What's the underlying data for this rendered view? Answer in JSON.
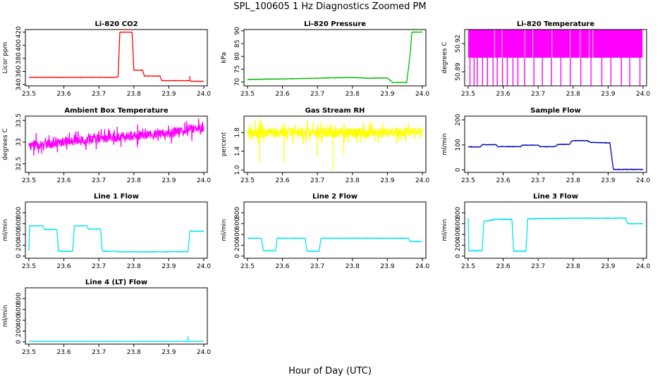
{
  "figure": {
    "title": "SPL_100605  1 Hz Diagnostics Zoomed PM",
    "xlabel": "Hour of Day (UTC)"
  },
  "chart_data": [
    {
      "id": "co2",
      "type": "line",
      "title": "Li-820 CO2",
      "ylabel": "Licor ppm",
      "color": "#ff0000",
      "noise": 0.25,
      "xlim": [
        23.49,
        24.01
      ],
      "ylim": [
        338,
        424
      ],
      "xticks": [
        23.5,
        23.6,
        23.7,
        23.8,
        23.9,
        24.0
      ],
      "xtick_labels": [
        "23.5",
        "23.6",
        "23.7",
        "23.8",
        "23.9",
        "24.0"
      ],
      "yticks": [
        340,
        360,
        380,
        400,
        420
      ],
      "ytick_labels": [
        "340",
        "360",
        "380",
        "400",
        "420"
      ],
      "series": [
        {
          "name": "CO2",
          "x": [
            23.5,
            23.65,
            23.75,
            23.755,
            23.76,
            23.795,
            23.8,
            23.825,
            23.83,
            23.845,
            23.85,
            23.875,
            23.88,
            23.955,
            23.96,
            23.965,
            24.0
          ],
          "y": [
            351,
            351,
            351,
            352,
            420,
            420,
            362,
            362,
            353,
            353,
            353,
            353,
            346,
            346,
            346,
            345,
            345
          ]
        }
      ],
      "spikes": [
        {
          "x": 23.96,
          "y": 353
        }
      ]
    },
    {
      "id": "pressure",
      "type": "line",
      "title": "Li-820 Pressure",
      "ylabel": "kPa",
      "color": "#00bb00",
      "noise": 0.1,
      "xlim": [
        23.49,
        24.01
      ],
      "ylim": [
        68.5,
        90.5
      ],
      "xticks": [
        23.5,
        23.6,
        23.7,
        23.8,
        23.9,
        24.0
      ],
      "xtick_labels": [
        "23.5",
        "23.6",
        "23.7",
        "23.8",
        "23.9",
        "24.0"
      ],
      "yticks": [
        70,
        75,
        80,
        85,
        90
      ],
      "ytick_labels": [
        "70",
        "75",
        "80",
        "85",
        "90"
      ],
      "series": [
        {
          "name": "Pressure",
          "x": [
            23.5,
            23.6,
            23.7,
            23.8,
            23.84,
            23.85,
            23.9,
            23.915,
            23.955,
            23.96,
            23.965,
            23.97,
            24.0
          ],
          "y": [
            71,
            71.2,
            71.5,
            71.8,
            71.5,
            71.5,
            71.6,
            69.8,
            69.8,
            75,
            81,
            89.5,
            89.5
          ]
        }
      ]
    },
    {
      "id": "licor_temp",
      "type": "band",
      "title": "Li-820 Temperature",
      "ylabel": "degrees C",
      "color": "#ff00ff",
      "xlim": [
        23.49,
        24.01
      ],
      "ylim": [
        50.875,
        50.935
      ],
      "xticks": [
        23.5,
        23.6,
        23.7,
        23.8,
        23.9,
        24.0
      ],
      "xtick_labels": [
        "23.5",
        "23.6",
        "23.7",
        "23.8",
        "23.9",
        "24.0"
      ],
      "yticks": [
        50.89,
        50.92
      ],
      "ytick_labels": [
        "50.89",
        "50.92"
      ],
      "band": {
        "low": 50.905,
        "high": 50.935
      },
      "dropouts": [
        23.505,
        23.517,
        23.526,
        23.541,
        23.555,
        23.571,
        23.583,
        23.598,
        23.612,
        23.628,
        23.642,
        23.661,
        23.688,
        23.712,
        23.738,
        23.765,
        23.792,
        23.822,
        23.851,
        23.882,
        23.908,
        23.938,
        23.962,
        23.991
      ]
    },
    {
      "id": "box_temp",
      "type": "line",
      "title": "Ambient Box Temperature",
      "ylabel": "degrees C",
      "color": "#ff00ff",
      "noise": 0.1,
      "spiky": true,
      "xlim": [
        23.49,
        24.01
      ],
      "ylim": [
        32.3,
        33.6
      ],
      "xticks": [
        23.5,
        23.6,
        23.7,
        23.8,
        23.9,
        24.0
      ],
      "xtick_labels": [
        "23.5",
        "23.6",
        "23.7",
        "23.8",
        "23.9",
        "24.0"
      ],
      "yticks": [
        32.5,
        33.0,
        33.5
      ],
      "ytick_labels": [
        "32.5",
        "33",
        "33.5"
      ],
      "series": [
        {
          "name": "Box Temp",
          "x": [
            23.5,
            23.55,
            23.6,
            23.7,
            23.8,
            23.9,
            23.95,
            24.0
          ],
          "y": [
            32.95,
            32.95,
            33.0,
            33.08,
            33.15,
            33.2,
            33.3,
            33.35
          ]
        }
      ]
    },
    {
      "id": "rh",
      "type": "line",
      "title": "Gas Stream RH",
      "ylabel": "percent",
      "color": "#ffff00",
      "noise": 0.1,
      "spiky": true,
      "xlim": [
        23.49,
        24.01
      ],
      "ylim": [
        0.95,
        2.15
      ],
      "xticks": [
        23.5,
        23.6,
        23.7,
        23.8,
        23.9,
        24.0
      ],
      "xtick_labels": [
        "23.5",
        "23.6",
        "23.7",
        "23.8",
        "23.9",
        "24.0"
      ],
      "yticks": [
        1.0,
        1.4,
        1.8
      ],
      "ytick_labels": [
        "1.0",
        "1.4",
        "1.8"
      ],
      "series": [
        {
          "name": "RH",
          "x": [
            23.5,
            23.6,
            23.7,
            23.8,
            23.9,
            24.0
          ],
          "y": [
            1.8,
            1.8,
            1.8,
            1.8,
            1.8,
            1.82
          ]
        }
      ],
      "spikes": [
        {
          "x": 23.745,
          "y": 1.0
        },
        {
          "x": 23.605,
          "y": 1.15
        },
        {
          "x": 23.535,
          "y": 1.15
        },
        {
          "x": 23.7,
          "y": 1.3
        },
        {
          "x": 23.775,
          "y": 1.35
        }
      ]
    },
    {
      "id": "sample_flow",
      "type": "line",
      "title": "Sample Flow",
      "ylabel": "ml/min",
      "color": "#0000bb",
      "noise": 1.2,
      "xlim": [
        23.49,
        24.01
      ],
      "ylim": [
        -10,
        215
      ],
      "xticks": [
        23.5,
        23.6,
        23.7,
        23.8,
        23.9,
        24.0
      ],
      "xtick_labels": [
        "23.5",
        "23.6",
        "23.7",
        "23.8",
        "23.9",
        "24.0"
      ],
      "yticks": [
        0,
        100,
        200
      ],
      "ytick_labels": [
        "0",
        "100",
        "200"
      ],
      "series": [
        {
          "name": "Sample Flow",
          "x": [
            23.5,
            23.535,
            23.54,
            23.58,
            23.585,
            23.65,
            23.655,
            23.7,
            23.705,
            23.75,
            23.755,
            23.79,
            23.795,
            23.8,
            23.84,
            23.85,
            23.9,
            23.905,
            23.915,
            23.92,
            24.0
          ],
          "y": [
            92,
            92,
            101,
            101,
            93,
            93,
            99,
            99,
            93,
            93,
            102,
            102,
            115,
            117,
            117,
            110,
            108,
            108,
            2,
            2,
            2
          ]
        }
      ]
    },
    {
      "id": "line1",
      "type": "line",
      "title": "Line 1 Flow",
      "ylabel": "ml/min",
      "color": "#00e5ee",
      "noise": 6,
      "xlim": [
        23.49,
        24.01
      ],
      "ylim": [
        -40,
        1000
      ],
      "xticks": [
        23.5,
        23.6,
        23.7,
        23.8,
        23.9,
        24.0
      ],
      "xtick_labels": [
        "23.5",
        "23.6",
        "23.7",
        "23.8",
        "23.9",
        "24.0"
      ],
      "yticks": [
        0,
        200,
        400,
        600,
        800
      ],
      "ytick_labels": [
        "0",
        "200",
        "400",
        "600",
        "800"
      ],
      "series": [
        {
          "name": "Line 1",
          "x": [
            23.5,
            23.502,
            23.54,
            23.545,
            23.58,
            23.585,
            23.625,
            23.63,
            23.665,
            23.67,
            23.705,
            23.71,
            23.75,
            23.755,
            23.955,
            23.96,
            24.0
          ],
          "y": [
            100,
            560,
            560,
            490,
            490,
            90,
            90,
            560,
            560,
            500,
            500,
            90,
            90,
            80,
            80,
            460,
            460
          ]
        }
      ]
    },
    {
      "id": "line2",
      "type": "line",
      "title": "Line 2 Flow",
      "ylabel": "ml/min",
      "color": "#00e5ee",
      "noise": 6,
      "xlim": [
        23.49,
        24.01
      ],
      "ylim": [
        -40,
        1000
      ],
      "xticks": [
        23.5,
        23.6,
        23.7,
        23.8,
        23.9,
        24.0
      ],
      "xtick_labels": [
        "23.5",
        "23.6",
        "23.7",
        "23.8",
        "23.9",
        "24.0"
      ],
      "yticks": [
        0,
        200,
        400,
        600,
        800
      ],
      "ytick_labels": [
        "0",
        "200",
        "400",
        "600",
        "800"
      ],
      "series": [
        {
          "name": "Line 2",
          "x": [
            23.5,
            23.54,
            23.545,
            23.58,
            23.585,
            23.665,
            23.67,
            23.705,
            23.71,
            23.96,
            23.965,
            24.0
          ],
          "y": [
            330,
            330,
            100,
            100,
            330,
            330,
            90,
            90,
            330,
            330,
            270,
            270
          ]
        }
      ]
    },
    {
      "id": "line3",
      "type": "line",
      "title": "Line 3 Flow",
      "ylabel": "ml/min",
      "color": "#00e5ee",
      "noise": 8,
      "xlim": [
        23.49,
        24.01
      ],
      "ylim": [
        -40,
        1000
      ],
      "xticks": [
        23.5,
        23.6,
        23.7,
        23.8,
        23.9,
        24.0
      ],
      "xtick_labels": [
        "23.5",
        "23.6",
        "23.7",
        "23.8",
        "23.9",
        "24.0"
      ],
      "yticks": [
        0,
        200,
        400,
        600,
        800
      ],
      "ytick_labels": [
        "0",
        "200",
        "400",
        "600",
        "800"
      ],
      "series": [
        {
          "name": "Line 3",
          "x": [
            23.5,
            23.502,
            23.505,
            23.54,
            23.545,
            23.58,
            23.625,
            23.63,
            23.665,
            23.67,
            23.8,
            23.95,
            23.955,
            24.0
          ],
          "y": [
            700,
            100,
            100,
            100,
            640,
            680,
            680,
            90,
            90,
            690,
            700,
            700,
            600,
            600
          ]
        }
      ]
    },
    {
      "id": "line4",
      "type": "line",
      "title": "Line 4 (LT) Flow",
      "ylabel": "ml/min",
      "color": "#00e5ee",
      "noise": 2,
      "xlim": [
        23.49,
        24.01
      ],
      "ylim": [
        -40,
        1000
      ],
      "xticks": [
        23.5,
        23.6,
        23.7,
        23.8,
        23.9,
        24.0
      ],
      "xtick_labels": [
        "23.5",
        "23.6",
        "23.7",
        "23.8",
        "23.9",
        "24.0"
      ],
      "yticks": [
        0,
        200,
        400,
        600,
        800
      ],
      "ytick_labels": [
        "0",
        "200",
        "400",
        "600",
        "800"
      ],
      "series": [
        {
          "name": "Line 4",
          "x": [
            23.5,
            24.0
          ],
          "y": [
            12,
            12
          ]
        }
      ],
      "spikes": [
        {
          "x": 23.955,
          "y": 110
        }
      ]
    }
  ]
}
